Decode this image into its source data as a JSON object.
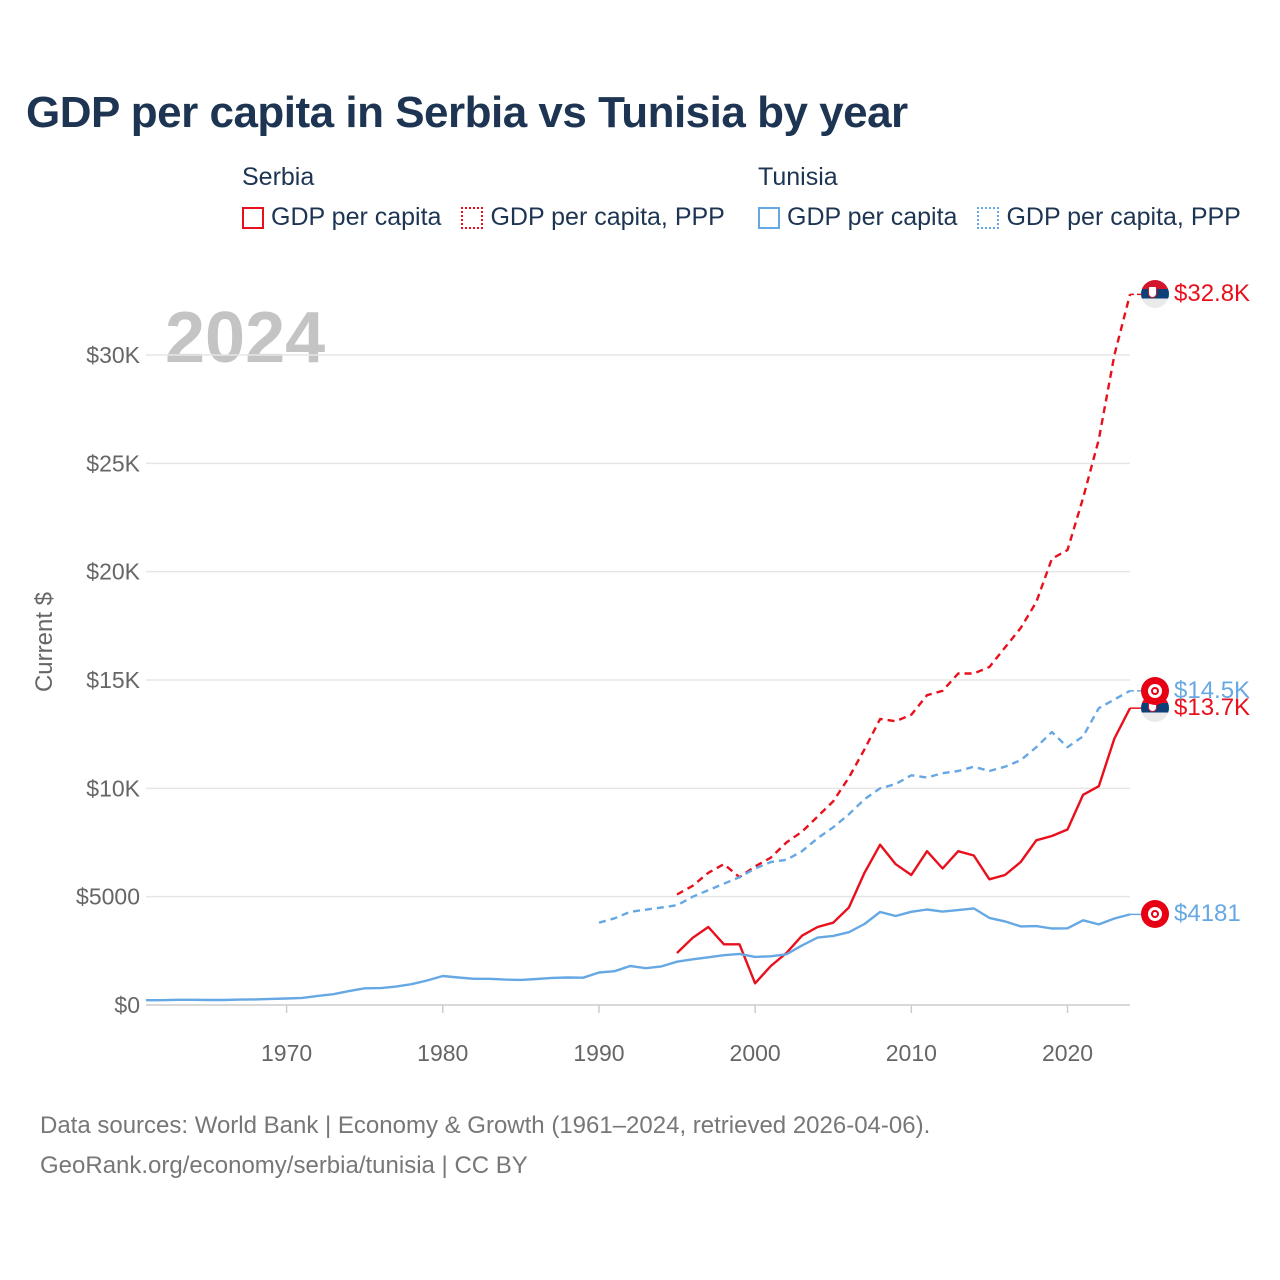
{
  "title": "GDP per capita in Serbia vs Tunisia by year",
  "legend": {
    "serbia": {
      "country": "Serbia",
      "items": [
        "GDP per capita",
        "GDP per capita, PPP"
      ]
    },
    "tunisia": {
      "country": "Tunisia",
      "items": [
        "GDP per capita",
        "GDP per capita, PPP"
      ]
    }
  },
  "colors": {
    "serbia": "#e8101c",
    "tunisia": "#66a8e3",
    "grid": "#e6e6e6",
    "axis_text": "#666666",
    "year_watermark": "#c4c4c4"
  },
  "icons": {
    "serbia_flag": "serbia-flag-icon",
    "tunisia_flag": "tunisia-flag-icon"
  },
  "source": {
    "line1": "Data sources: World Bank | Economy & Growth (1961–2024, retrieved 2026-04-06).",
    "line2": "GeoRank.org/economy/serbia/tunisia | CC BY"
  },
  "chart_data": {
    "type": "line",
    "year_label": "2024",
    "ylabel": "Current $",
    "xlim": [
      1961,
      2024
    ],
    "ylim": [
      0,
      33000
    ],
    "x_ticks": [
      1970,
      1980,
      1990,
      2000,
      2010,
      2020
    ],
    "x_tick_labels": [
      "1970",
      "1980",
      "1990",
      "2000",
      "2010",
      "2020"
    ],
    "y_ticks": [
      0,
      5000,
      10000,
      15000,
      20000,
      25000,
      30000
    ],
    "y_tick_labels": [
      "$0",
      "$5000",
      "$10K",
      "$15K",
      "$20K",
      "$25K",
      "$30K"
    ],
    "series": [
      {
        "name": "Serbia GDP per capita",
        "country": "serbia",
        "dashed": false,
        "end_label": "$13.7K",
        "x": [
          1995,
          1996,
          1997,
          1998,
          1999,
          2000,
          2001,
          2002,
          2003,
          2004,
          2005,
          2006,
          2007,
          2008,
          2009,
          2010,
          2011,
          2012,
          2013,
          2014,
          2015,
          2016,
          2017,
          2018,
          2019,
          2020,
          2021,
          2022,
          2023,
          2024
        ],
        "y": [
          2400,
          3100,
          3600,
          2800,
          2800,
          1000,
          1800,
          2400,
          3200,
          3600,
          3800,
          4500,
          6100,
          7400,
          6500,
          6000,
          7100,
          6300,
          7100,
          6900,
          5800,
          6000,
          6600,
          7600,
          7800,
          8100,
          9700,
          10100,
          12300,
          13700
        ]
      },
      {
        "name": "Serbia GDP per capita, PPP",
        "country": "serbia",
        "dashed": true,
        "end_label": "$32.8K",
        "x": [
          1995,
          1996,
          1997,
          1998,
          1999,
          2000,
          2001,
          2002,
          2003,
          2004,
          2005,
          2006,
          2007,
          2008,
          2009,
          2010,
          2011,
          2012,
          2013,
          2014,
          2015,
          2016,
          2017,
          2018,
          2019,
          2020,
          2021,
          2022,
          2023,
          2024
        ],
        "y": [
          5100,
          5500,
          6100,
          6500,
          5900,
          6400,
          6800,
          7500,
          8000,
          8700,
          9400,
          10500,
          11800,
          13200,
          13100,
          13400,
          14300,
          14500,
          15300,
          15300,
          15600,
          16500,
          17400,
          18600,
          20600,
          21000,
          23400,
          26100,
          30000,
          32800
        ]
      },
      {
        "name": "Tunisia GDP per capita",
        "country": "tunisia",
        "dashed": false,
        "end_label": "$4181",
        "x": [
          1961,
          1962,
          1963,
          1964,
          1965,
          1966,
          1967,
          1968,
          1969,
          1970,
          1971,
          1972,
          1973,
          1974,
          1975,
          1976,
          1977,
          1978,
          1979,
          1980,
          1981,
          1982,
          1983,
          1984,
          1985,
          1986,
          1987,
          1988,
          1989,
          1990,
          1991,
          1992,
          1993,
          1994,
          1995,
          1996,
          1997,
          1998,
          1999,
          2000,
          2001,
          2002,
          2003,
          2004,
          2005,
          2006,
          2007,
          2008,
          2009,
          2010,
          2011,
          2012,
          2013,
          2014,
          2015,
          2016,
          2017,
          2018,
          2019,
          2020,
          2021,
          2022,
          2023,
          2024
        ],
        "y": [
          220,
          220,
          240,
          240,
          230,
          230,
          250,
          260,
          280,
          300,
          330,
          420,
          500,
          640,
          770,
          780,
          850,
          960,
          1130,
          1340,
          1270,
          1210,
          1210,
          1170,
          1160,
          1200,
          1250,
          1270,
          1260,
          1500,
          1560,
          1800,
          1700,
          1780,
          2000,
          2110,
          2200,
          2300,
          2360,
          2220,
          2250,
          2340,
          2750,
          3110,
          3190,
          3360,
          3740,
          4290,
          4110,
          4300,
          4410,
          4310,
          4380,
          4460,
          4020,
          3860,
          3630,
          3640,
          3530,
          3540,
          3910,
          3720,
          3990,
          4181
        ]
      },
      {
        "name": "Tunisia GDP per capita, PPP",
        "country": "tunisia",
        "dashed": true,
        "end_label": "$14.5K",
        "x": [
          1990,
          1991,
          1992,
          1993,
          1994,
          1995,
          1996,
          1997,
          1998,
          1999,
          2000,
          2001,
          2002,
          2003,
          2004,
          2005,
          2006,
          2007,
          2008,
          2009,
          2010,
          2011,
          2012,
          2013,
          2014,
          2015,
          2016,
          2017,
          2018,
          2019,
          2020,
          2021,
          2022,
          2023,
          2024
        ],
        "y": [
          3800,
          4000,
          4300,
          4400,
          4500,
          4600,
          5000,
          5300,
          5600,
          5900,
          6300,
          6600,
          6700,
          7100,
          7700,
          8200,
          8800,
          9500,
          10000,
          10200,
          10600,
          10500,
          10700,
          10800,
          11000,
          10800,
          11000,
          11300,
          11900,
          12600,
          11900,
          12400,
          13700,
          14100,
          14500
        ]
      }
    ]
  }
}
